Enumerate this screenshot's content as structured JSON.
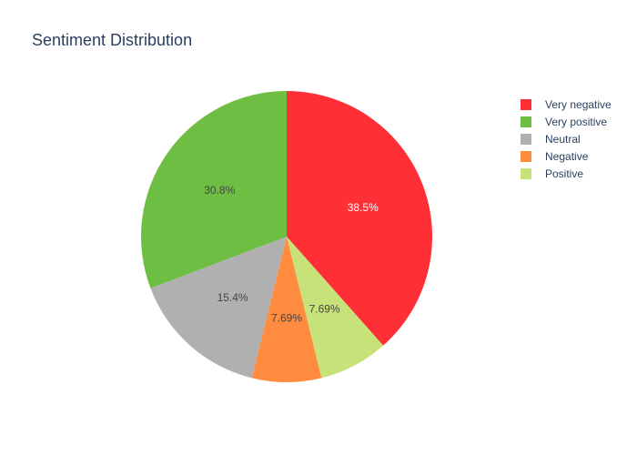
{
  "chart_data": {
    "type": "pie",
    "title": "Sentiment Distribution",
    "labels": [
      "Very negative",
      "Very positive",
      "Neutral",
      "Negative",
      "Positive"
    ],
    "values": [
      5,
      4,
      2,
      1,
      1
    ],
    "percent_labels": [
      "38.5%",
      "30.8%",
      "15.4%",
      "7.69%",
      "7.69%"
    ],
    "colors": [
      "#ff3035",
      "#6fbe44",
      "#b0b0b0",
      "#ff8c3f",
      "#c8e27a"
    ],
    "label_colors": [
      "#ffffff",
      "#444444",
      "#444444",
      "#444444",
      "#444444"
    ],
    "slice_order": [
      0,
      4,
      3,
      2,
      1
    ],
    "direction": "clockwise",
    "start_angle_deg": 0,
    "legend": {
      "position": "top-right",
      "items": [
        "Very negative",
        "Very positive",
        "Neutral",
        "Negative",
        "Positive"
      ]
    }
  }
}
